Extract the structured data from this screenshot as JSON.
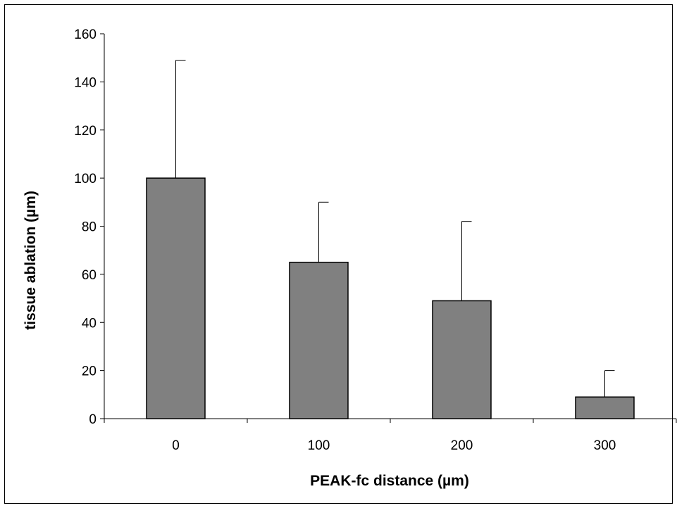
{
  "chart_data": {
    "type": "bar",
    "title": "",
    "xlabel": "PEAK-fc distance (µm)",
    "ylabel": "tissue ablation (µm)",
    "categories": [
      "0",
      "100",
      "200",
      "300"
    ],
    "values": [
      100,
      65,
      49,
      9
    ],
    "error_upper": [
      149,
      90,
      82,
      20
    ],
    "ylim": [
      0,
      160
    ],
    "yticks": [
      "0",
      "20",
      "40",
      "60",
      "80",
      "100",
      "120",
      "140",
      "160"
    ],
    "grid": false,
    "legend": "none",
    "bar_color": "#808080",
    "border_color": "#000000"
  }
}
